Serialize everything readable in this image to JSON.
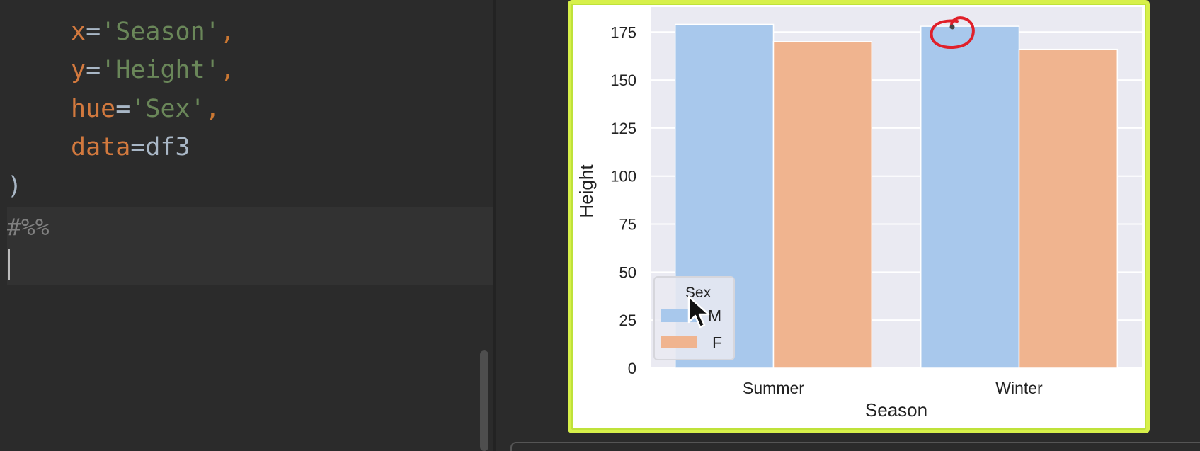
{
  "editor": {
    "lines": [
      {
        "param": "x",
        "eq": "=",
        "value": "'Season'",
        "punc": ","
      },
      {
        "param": "y",
        "eq": "=",
        "value": "'Height'",
        "punc": ","
      },
      {
        "param": "hue",
        "eq": "=",
        "value": "'Sex'",
        "punc": ","
      },
      {
        "param": "data",
        "eq": "=",
        "value": "df3",
        "punc": ""
      }
    ],
    "closing_paren": ")",
    "cell_marker": "#%%"
  },
  "colors": {
    "series_M": "#a8c8ec",
    "series_F": "#f0b48f",
    "plot_bg": "#eaeaf2",
    "highlight_border": "#d7f04a",
    "annotation": "#e0202a"
  },
  "chart_data": {
    "type": "bar",
    "categories": [
      "Summer",
      "Winter"
    ],
    "series": [
      {
        "name": "M",
        "values": [
          179,
          178
        ]
      },
      {
        "name": "F",
        "values": [
          170,
          166
        ]
      }
    ],
    "xlabel": "Season",
    "ylabel": "Height",
    "ylim": [
      0,
      188
    ],
    "yticks": [
      0,
      25,
      50,
      75,
      100,
      125,
      150,
      175
    ],
    "legend_title": "Sex",
    "legend_position": "lower-left",
    "grid": true
  }
}
